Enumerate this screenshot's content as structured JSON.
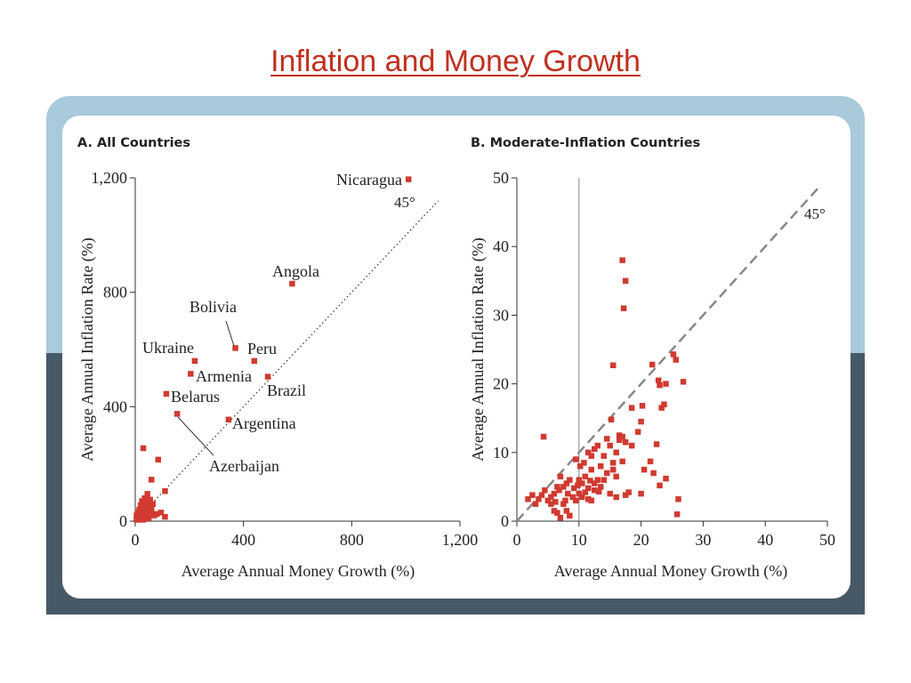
{
  "slide": {
    "title": "Inflation and Money Growth"
  },
  "colors": {
    "title": "#c0301f",
    "marker": "#d03a30",
    "frame_top": "#a9cadb",
    "frame_bottom": "#475966",
    "axis": "#333333"
  },
  "chart_data": [
    {
      "type": "scatter",
      "title": "A. All Countries",
      "xlabel": "Average Annual Money Growth (%)",
      "ylabel": "Average Annual Inflation Rate (%)",
      "xlim": [
        0,
        1200
      ],
      "ylim": [
        0,
        1200
      ],
      "xticks": [
        0,
        400,
        800,
        1200
      ],
      "xtick_labels": [
        "0",
        "400",
        "800",
        "1,200"
      ],
      "yticks": [
        0,
        400,
        800,
        1200
      ],
      "ytick_labels": [
        "0",
        "400",
        "800",
        "1,200"
      ],
      "grid": false,
      "reference_line": {
        "label": "45°",
        "style": "dotted"
      },
      "labeled_points": [
        {
          "label": "Nicaragua",
          "x": 1010,
          "y": 1195
        },
        {
          "label": "Angola",
          "x": 580,
          "y": 830
        },
        {
          "label": "Bolivia",
          "x": 370,
          "y": 605
        },
        {
          "label": "Peru",
          "x": 440,
          "y": 560
        },
        {
          "label": "Ukraine",
          "x": 220,
          "y": 560
        },
        {
          "label": "Armenia",
          "x": 205,
          "y": 515
        },
        {
          "label": "Brazil",
          "x": 490,
          "y": 505
        },
        {
          "label": "Belarus",
          "x": 115,
          "y": 445
        },
        {
          "label": "Argentina",
          "x": 345,
          "y": 355
        },
        {
          "label": "Azerbaijan",
          "x": 155,
          "y": 375
        }
      ],
      "points": [
        [
          30,
          255
        ],
        [
          85,
          215
        ],
        [
          60,
          145
        ],
        [
          110,
          105
        ],
        [
          45,
          95
        ],
        [
          25,
          70
        ],
        [
          55,
          75
        ],
        [
          35,
          55
        ],
        [
          15,
          40
        ],
        [
          40,
          45
        ],
        [
          50,
          40
        ],
        [
          20,
          30
        ],
        [
          30,
          25
        ],
        [
          45,
          30
        ],
        [
          60,
          35
        ],
        [
          25,
          15
        ],
        [
          10,
          10
        ],
        [
          40,
          20
        ],
        [
          55,
          50
        ],
        [
          65,
          60
        ],
        [
          35,
          80
        ],
        [
          20,
          55
        ],
        [
          5,
          20
        ],
        [
          15,
          5
        ],
        [
          80,
          25
        ],
        [
          95,
          30
        ],
        [
          70,
          20
        ],
        [
          50,
          10
        ],
        [
          30,
          5
        ],
        [
          45,
          60
        ],
        [
          25,
          45
        ],
        [
          60,
          45
        ],
        [
          10,
          30
        ],
        [
          35,
          35
        ],
        [
          20,
          20
        ],
        [
          50,
          25
        ],
        [
          40,
          70
        ],
        [
          30,
          60
        ],
        [
          110,
          15
        ],
        [
          5,
          5
        ]
      ]
    },
    {
      "type": "scatter",
      "title": "B. Moderate-Inflation Countries",
      "xlabel": "Average Annual Money Growth (%)",
      "ylabel": "Average Annual Inflation Rate (%)",
      "xlim": [
        0,
        50
      ],
      "ylim": [
        0,
        50
      ],
      "xticks": [
        0,
        10,
        20,
        30,
        40,
        50
      ],
      "yticks": [
        0,
        10,
        20,
        30,
        40,
        50
      ],
      "grid": false,
      "vertical_line_x": 10,
      "reference_line": {
        "label": "45°",
        "style": "dashed"
      },
      "points": [
        [
          17,
          38
        ],
        [
          17.5,
          35
        ],
        [
          17.2,
          31
        ],
        [
          15.5,
          22.7
        ],
        [
          21.8,
          22.8
        ],
        [
          25.2,
          24.3
        ],
        [
          25.6,
          23.5
        ],
        [
          26.8,
          20.3
        ],
        [
          22.8,
          20.5
        ],
        [
          23,
          19.8
        ],
        [
          24,
          20
        ],
        [
          23.7,
          17
        ],
        [
          23.3,
          16.5
        ],
        [
          20.2,
          16.8
        ],
        [
          20,
          14.5
        ],
        [
          4.3,
          12.3
        ],
        [
          18.5,
          16.5
        ],
        [
          15.2,
          14.8
        ],
        [
          16.5,
          12.5
        ],
        [
          17,
          12.3
        ],
        [
          17.5,
          11.5
        ],
        [
          18.5,
          11
        ],
        [
          19.5,
          13
        ],
        [
          22.5,
          11.2
        ],
        [
          14.5,
          12
        ],
        [
          13,
          11
        ],
        [
          12.5,
          10.5
        ],
        [
          15,
          11
        ],
        [
          16,
          10
        ],
        [
          16.5,
          11.8
        ],
        [
          14,
          9.5
        ],
        [
          12,
          9.5
        ],
        [
          11.5,
          10
        ],
        [
          13.5,
          8
        ],
        [
          10.8,
          8.5
        ],
        [
          9.5,
          9
        ],
        [
          10.2,
          8
        ],
        [
          15.5,
          8.5
        ],
        [
          17,
          8.7
        ],
        [
          21.5,
          8.7
        ],
        [
          20.5,
          7.5
        ],
        [
          22,
          7
        ],
        [
          24,
          6.2
        ],
        [
          23,
          5.2
        ],
        [
          20,
          4
        ],
        [
          17.5,
          3.8
        ],
        [
          16,
          3.5
        ],
        [
          15,
          4
        ],
        [
          13.5,
          5
        ],
        [
          12.5,
          4.5
        ],
        [
          11.5,
          4.8
        ],
        [
          11,
          4.2
        ],
        [
          10.5,
          5.5
        ],
        [
          9.8,
          5.2
        ],
        [
          9.2,
          4.8
        ],
        [
          8.5,
          6
        ],
        [
          8,
          5.5
        ],
        [
          7.5,
          5
        ],
        [
          7,
          6.5
        ],
        [
          6.5,
          5
        ],
        [
          6,
          4
        ],
        [
          5.5,
          3.5
        ],
        [
          5,
          3
        ],
        [
          4.5,
          4.5
        ],
        [
          4,
          3.8
        ],
        [
          3.5,
          3.2
        ],
        [
          3,
          2.5
        ],
        [
          2.5,
          3.8
        ],
        [
          1.8,
          3.2
        ],
        [
          5.5,
          2.5
        ],
        [
          6,
          1.5
        ],
        [
          6.5,
          1.2
        ],
        [
          7,
          0.5
        ],
        [
          7.5,
          2.5
        ],
        [
          8,
          1.5
        ],
        [
          8.5,
          0.8
        ],
        [
          9,
          3.5
        ],
        [
          10,
          4
        ],
        [
          11.5,
          3.2
        ],
        [
          12,
          3
        ],
        [
          10.5,
          3.5
        ],
        [
          9.5,
          3
        ],
        [
          13,
          6
        ],
        [
          14,
          6
        ],
        [
          16,
          6.5
        ],
        [
          15.5,
          7.5
        ],
        [
          14.5,
          7
        ],
        [
          12,
          7.5
        ],
        [
          11,
          6.5
        ],
        [
          10,
          6
        ],
        [
          8.2,
          4
        ],
        [
          7.8,
          3
        ],
        [
          6.8,
          4.5
        ],
        [
          6.2,
          2.8
        ],
        [
          12.5,
          5.5
        ],
        [
          13.2,
          4.3
        ],
        [
          26,
          3.2
        ],
        [
          25.8,
          1
        ],
        [
          18,
          4.2
        ],
        [
          11.8,
          5.9
        ]
      ]
    }
  ]
}
